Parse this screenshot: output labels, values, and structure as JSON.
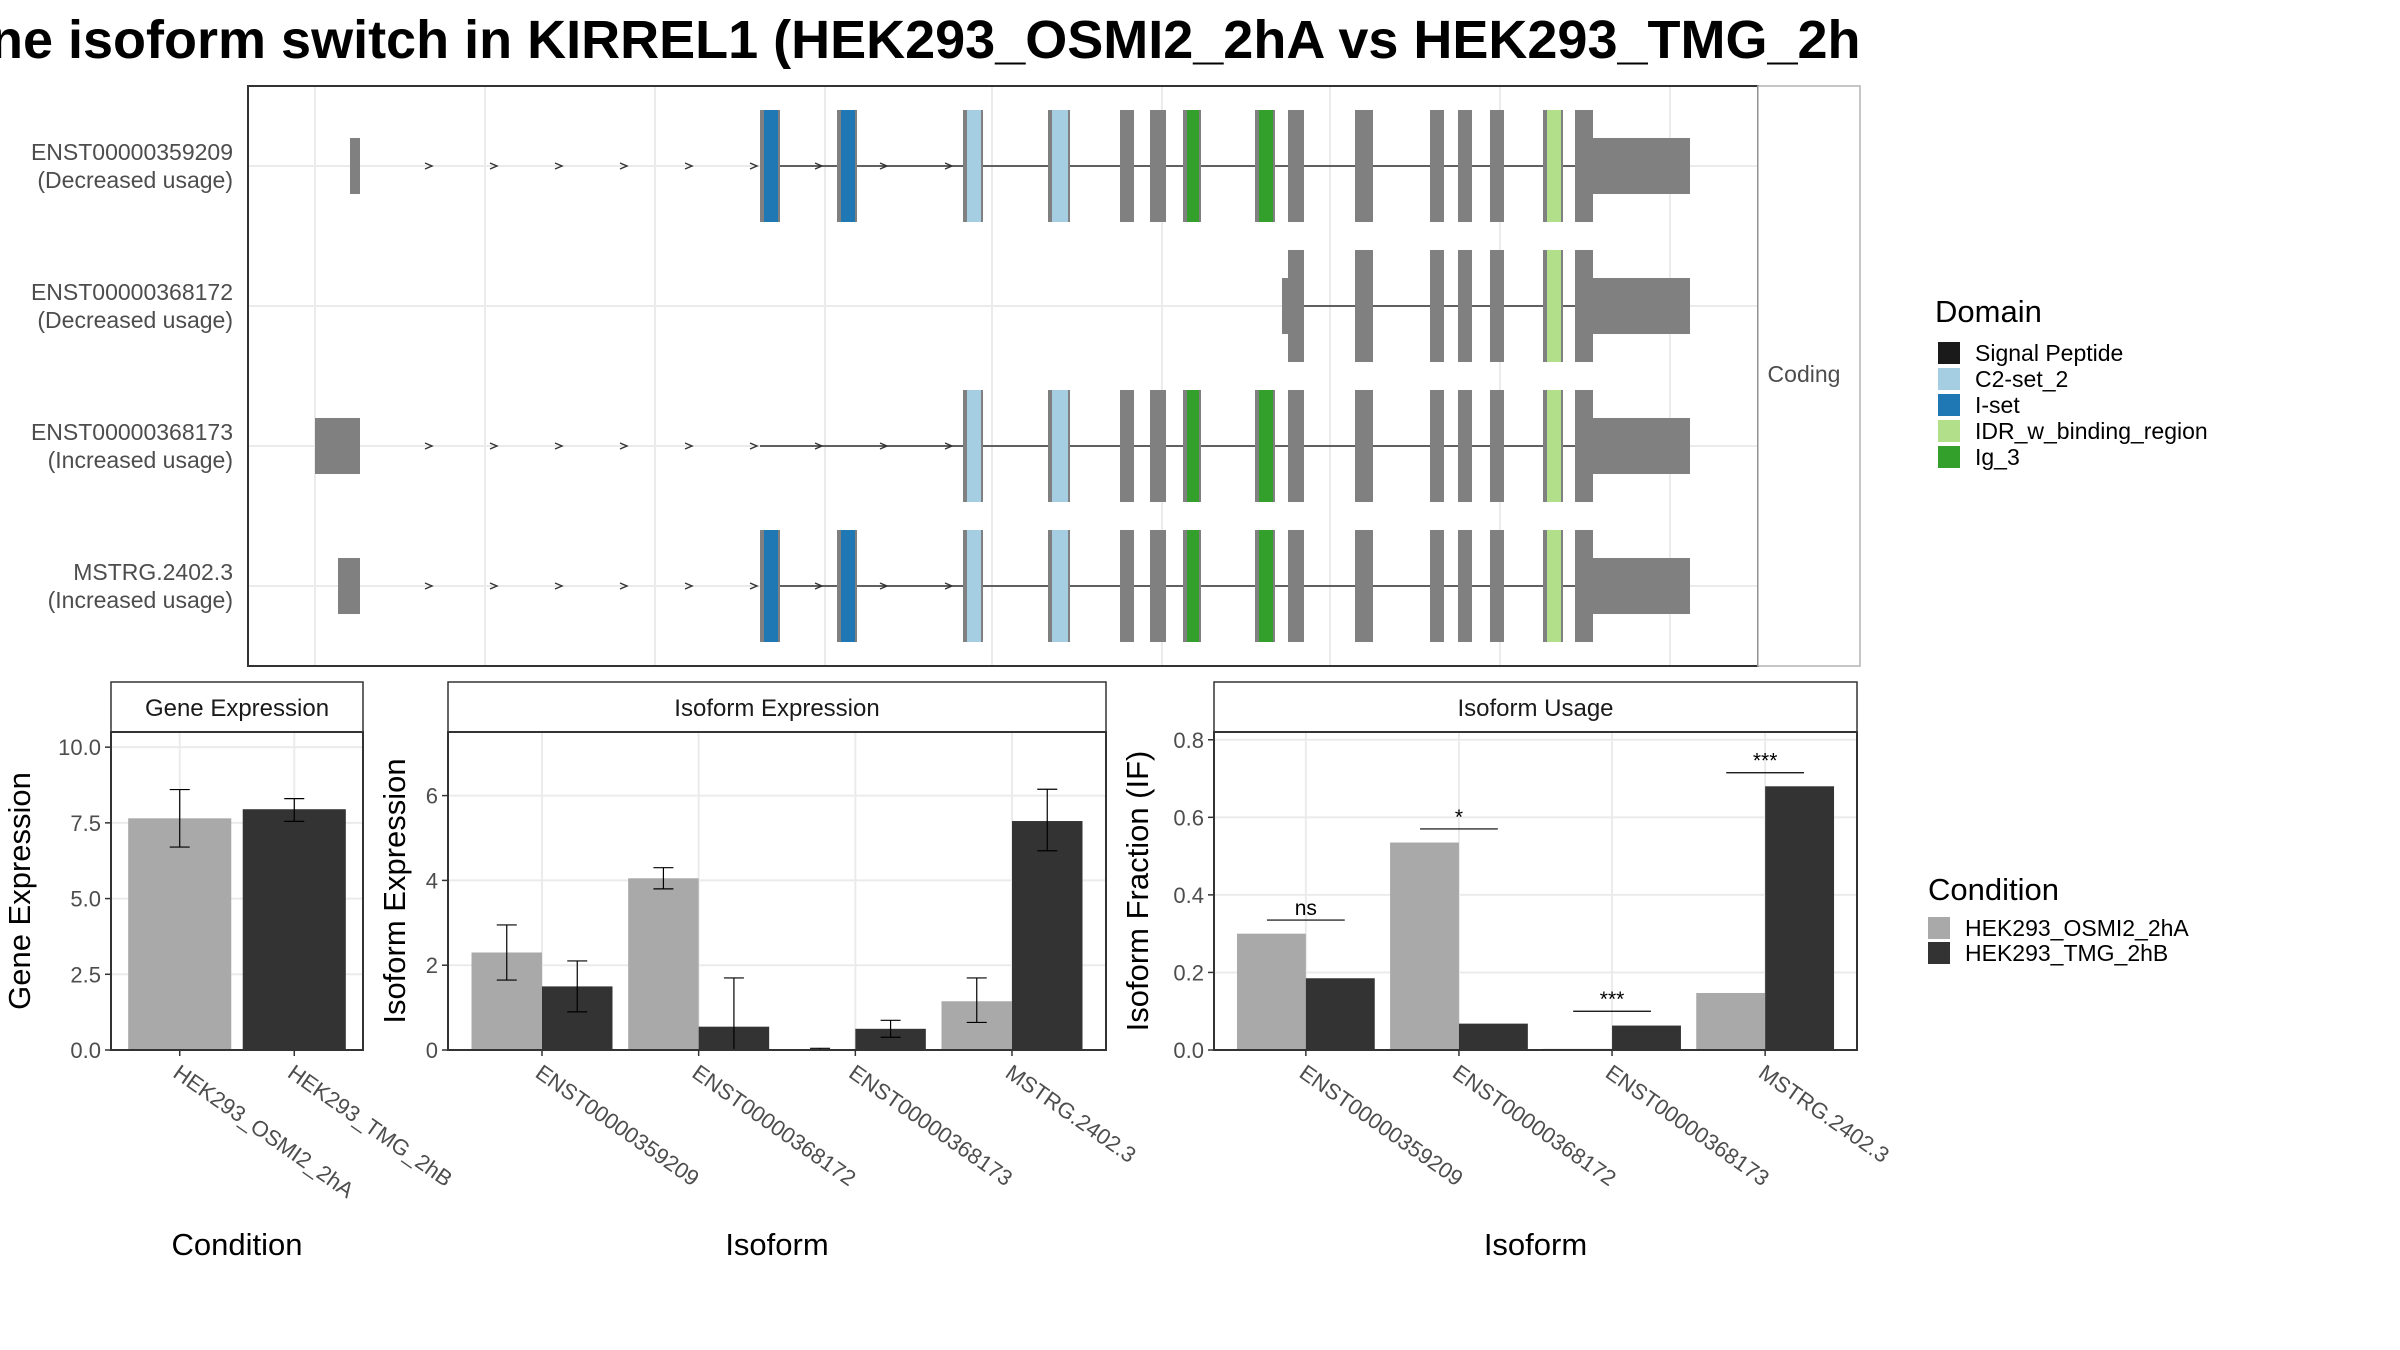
{
  "title": "ne isoform switch in KIRREL1 (HEK293_OSMI2_2hA vs HEK293_TMG_2h",
  "structure_panel": {
    "facet_label": "Coding",
    "transcripts": [
      {
        "id": "ENST00000359209",
        "usage": "(Decreased usage)",
        "start_at": 1,
        "has_iset": true
      },
      {
        "id": "ENST00000368172",
        "usage": "(Decreased usage)",
        "start_at": 9,
        "has_iset": false
      },
      {
        "id": "ENST00000368173",
        "usage": "(Increased usage)",
        "start_at": 1,
        "has_iset": false
      },
      {
        "id": "MSTRG.2402.3",
        "usage": "(Increased usage)",
        "start_at": 1,
        "has_iset": true
      }
    ],
    "domain_legend": {
      "title": "Domain",
      "items": [
        {
          "label": "Signal Peptide",
          "color": "#1a1a1a"
        },
        {
          "label": "C2-set_2",
          "color": "#a6cee3"
        },
        {
          "label": "I-set",
          "color": "#1f78b4"
        },
        {
          "label": "IDR_w_binding_region",
          "color": "#b2df8a"
        },
        {
          "label": "Ig_3",
          "color": "#33a02c"
        }
      ]
    }
  },
  "chart_data": [
    {
      "type": "bar",
      "title": "Gene Expression",
      "xlabel": "Condition",
      "ylabel": "Gene Expression",
      "categories": [
        "HEK293_OSMI2_2hA",
        "HEK293_TMG_2hB"
      ],
      "values": [
        7.65,
        7.95
      ],
      "error_low": [
        6.7,
        7.55
      ],
      "error_high": [
        8.6,
        8.3
      ],
      "ylim": [
        0,
        10.5
      ],
      "yticks": [
        "0.0",
        "2.5",
        "5.0",
        "7.5",
        "10.0"
      ]
    },
    {
      "type": "bar",
      "title": "Isoform Expression",
      "xlabel": "Isoform",
      "ylabel": "Isoform Expression",
      "categories": [
        "ENST00000359209",
        "ENST00000368172",
        "ENST00000368173",
        "MSTRG.2402.3"
      ],
      "series": [
        {
          "name": "HEK293_OSMI2_2hA",
          "values": [
            2.3,
            4.05,
            0.02,
            1.15
          ],
          "error_low": [
            1.65,
            3.8,
            0.0,
            0.65
          ],
          "error_high": [
            2.95,
            4.3,
            0.04,
            1.7
          ]
        },
        {
          "name": "HEK293_TMG_2hB",
          "values": [
            1.5,
            0.55,
            0.5,
            5.4
          ],
          "error_low": [
            0.9,
            0.0,
            0.3,
            4.7
          ],
          "error_high": [
            2.1,
            1.7,
            0.7,
            6.15
          ]
        }
      ],
      "ylim": [
        0,
        7.5
      ],
      "yticks": [
        "0",
        "2",
        "4",
        "6"
      ]
    },
    {
      "type": "bar",
      "title": "Isoform Usage",
      "xlabel": "Isoform",
      "ylabel": "Isoform Fraction (IF)",
      "categories": [
        "ENST00000359209",
        "ENST00000368172",
        "ENST00000368173",
        "MSTRG.2402.3"
      ],
      "series": [
        {
          "name": "HEK293_OSMI2_2hA",
          "values": [
            0.3,
            0.535,
            0.003,
            0.147
          ]
        },
        {
          "name": "HEK293_TMG_2hB",
          "values": [
            0.185,
            0.068,
            0.063,
            0.68
          ]
        }
      ],
      "significance": [
        "ns",
        "*",
        "***",
        "***"
      ],
      "significance_y": [
        0.335,
        0.57,
        0.1,
        0.715
      ],
      "ylim": [
        0,
        0.82
      ],
      "yticks": [
        "0.0",
        "0.2",
        "0.4",
        "0.6",
        "0.8"
      ]
    }
  ],
  "condition_legend": {
    "title": "Condition",
    "items": [
      {
        "label": "HEK293_OSMI2_2hA",
        "color": "#a9a9a9"
      },
      {
        "label": "HEK293_TMG_2hB",
        "color": "#333333"
      }
    ]
  }
}
